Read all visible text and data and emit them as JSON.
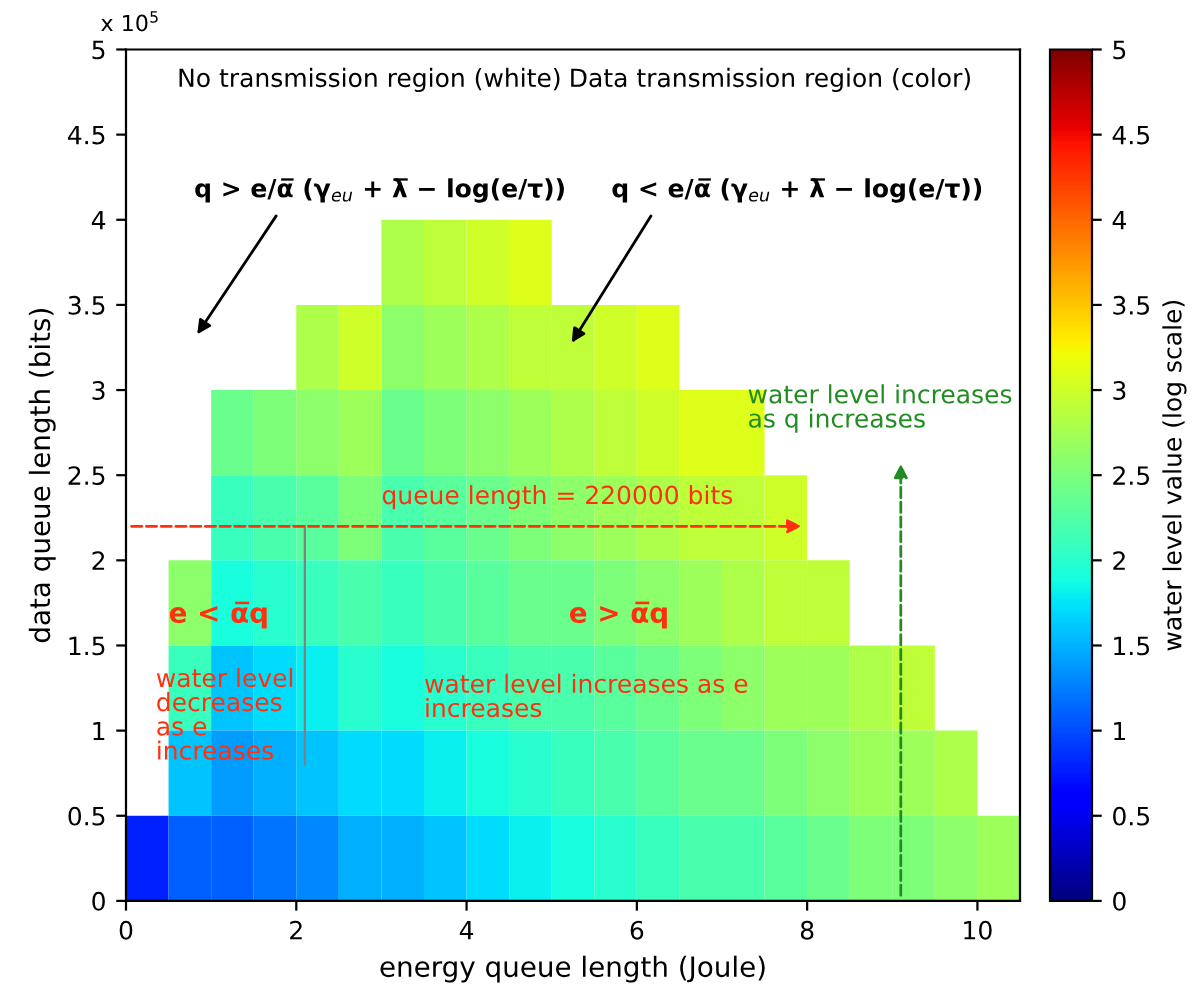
{
  "chart_data": {
    "type": "heatmap",
    "xlabel": "energy queue length (Joule)",
    "ylabel": "data queue length (bits)",
    "clabel": "water level value (log scale)",
    "x": [
      0.25,
      0.75,
      1.25,
      1.75,
      2.25,
      2.75,
      3.25,
      3.75,
      4.25,
      4.75,
      5.25,
      5.75,
      6.25,
      6.75,
      7.25,
      7.75,
      8.25,
      8.75,
      9.25,
      9.75,
      10.25
    ],
    "y": [
      3.75,
      3.25,
      2.75,
      2.25,
      1.75,
      1.25,
      0.75,
      0.25
    ],
    "cells": [
      [
        null,
        null,
        null,
        null,
        null,
        null,
        2.8,
        2.9,
        3.0,
        3.1,
        null,
        null,
        null,
        null,
        null,
        null,
        null,
        null,
        null,
        null,
        null
      ],
      [
        null,
        null,
        null,
        null,
        2.8,
        3.0,
        2.6,
        2.7,
        2.8,
        2.9,
        2.9,
        3.0,
        3.1,
        null,
        null,
        null,
        null,
        null,
        null,
        null,
        null
      ],
      [
        null,
        null,
        2.4,
        2.5,
        2.6,
        2.7,
        2.4,
        2.5,
        2.6,
        2.7,
        2.8,
        2.9,
        3.0,
        3.1,
        3.1,
        null,
        null,
        null,
        null,
        null,
        null
      ],
      [
        null,
        null,
        2.1,
        2.2,
        2.3,
        2.5,
        2.2,
        2.3,
        2.4,
        2.5,
        2.6,
        2.7,
        2.8,
        2.9,
        2.9,
        3.0,
        null,
        null,
        null,
        null,
        null
      ],
      [
        null,
        2.6,
        1.9,
        2.0,
        2.1,
        2.2,
        2.1,
        2.2,
        2.3,
        2.4,
        2.4,
        2.5,
        2.6,
        2.7,
        2.8,
        2.9,
        2.9,
        null,
        null,
        null,
        null
      ],
      [
        null,
        2.1,
        1.6,
        1.7,
        1.8,
        2.0,
        1.9,
        2.0,
        2.1,
        2.2,
        2.2,
        2.3,
        2.4,
        2.5,
        2.6,
        2.7,
        2.7,
        2.8,
        2.9,
        null,
        null
      ],
      [
        null,
        1.6,
        1.4,
        1.5,
        1.6,
        1.7,
        1.7,
        1.8,
        1.9,
        2.0,
        2.1,
        2.2,
        2.3,
        2.4,
        2.4,
        2.5,
        2.6,
        2.7,
        2.7,
        2.8,
        null
      ],
      [
        0.8,
        1.1,
        1.1,
        1.2,
        1.3,
        1.5,
        1.5,
        1.6,
        1.7,
        1.8,
        1.9,
        2.0,
        2.1,
        2.2,
        2.2,
        2.3,
        2.4,
        2.5,
        2.5,
        2.6,
        2.7
      ]
    ],
    "xlim": [
      0,
      10.5
    ],
    "xticks": [
      0,
      2,
      4,
      6,
      8,
      10
    ],
    "ylim": [
      0,
      5
    ],
    "yticks": [
      0,
      0.5,
      1,
      1.5,
      2,
      2.5,
      3,
      3.5,
      4,
      4.5,
      5
    ],
    "clim": [
      0,
      5
    ],
    "cticks": [
      0,
      0.5,
      1,
      1.5,
      2,
      2.5,
      3,
      3.5,
      4,
      4.5,
      5
    ],
    "annotations": [
      "No transmission region (white)",
      "Data transmission region (color)",
      "q > e/α̅ (γ$_{eu}$ + λ̅ − log(e/τ))",
      "q < e/α̅ (γ$_{eu}$ + λ̅ − log(e/τ))",
      "water level increases\nas q increases",
      "queue length = 220000 bits",
      "e < α̅q",
      "water level\ndecreases\nas e\nincreases",
      "e > α̅q",
      "water level increases as e\nincreases",
      "x 10$^{5}$"
    ]
  }
}
